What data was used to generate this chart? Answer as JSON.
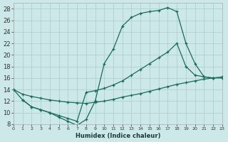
{
  "xlabel": "Humidex (Indice chaleur)",
  "xlim": [
    0,
    23
  ],
  "ylim": [
    8,
    29
  ],
  "bg_color": "#cce8e8",
  "grid_color": "#aacccc",
  "line_color": "#1a6b5a",
  "ytick_values": [
    8,
    10,
    12,
    14,
    16,
    18,
    20,
    22,
    24,
    26,
    28
  ],
  "curve1_x": [
    0,
    1,
    2,
    3,
    4,
    5,
    6,
    7,
    8,
    9,
    10,
    11,
    12,
    13,
    14,
    15,
    16,
    17,
    18,
    19,
    20,
    21,
    22
  ],
  "curve1_y": [
    14,
    12.2,
    11,
    10.5,
    10.0,
    9.2,
    8.5,
    7.8,
    8.8,
    12.0,
    18.5,
    21.0,
    25.0,
    26.5,
    27.2,
    27.5,
    27.7,
    28.2,
    27.5,
    22.0,
    18.5,
    16.2,
    16.0
  ],
  "curve2_x": [
    0,
    1,
    2,
    3,
    4,
    5,
    6,
    7,
    8,
    9,
    10,
    11,
    12,
    13,
    14,
    15,
    16,
    17,
    18,
    19,
    20,
    21,
    22,
    23
  ],
  "curve2_y": [
    14,
    13.2,
    12.8,
    12.5,
    12.2,
    12.0,
    11.8,
    11.7,
    11.6,
    11.8,
    12.0,
    12.3,
    12.7,
    13.0,
    13.3,
    13.7,
    14.1,
    14.5,
    14.9,
    15.2,
    15.5,
    15.8,
    16.0,
    16.2
  ],
  "curve3_x": [
    1,
    2,
    3,
    4,
    5,
    6,
    7,
    8,
    9,
    10,
    11,
    12,
    13,
    14,
    15,
    16,
    17,
    18,
    19,
    20,
    21,
    22,
    23
  ],
  "curve3_y": [
    12.2,
    11.0,
    10.5,
    10.0,
    9.5,
    9.0,
    8.5,
    13.5,
    13.8,
    14.2,
    14.8,
    15.5,
    16.5,
    17.5,
    18.5,
    19.5,
    20.5,
    22.0,
    18.0,
    16.5,
    16.2,
    16.0,
    16.0
  ]
}
